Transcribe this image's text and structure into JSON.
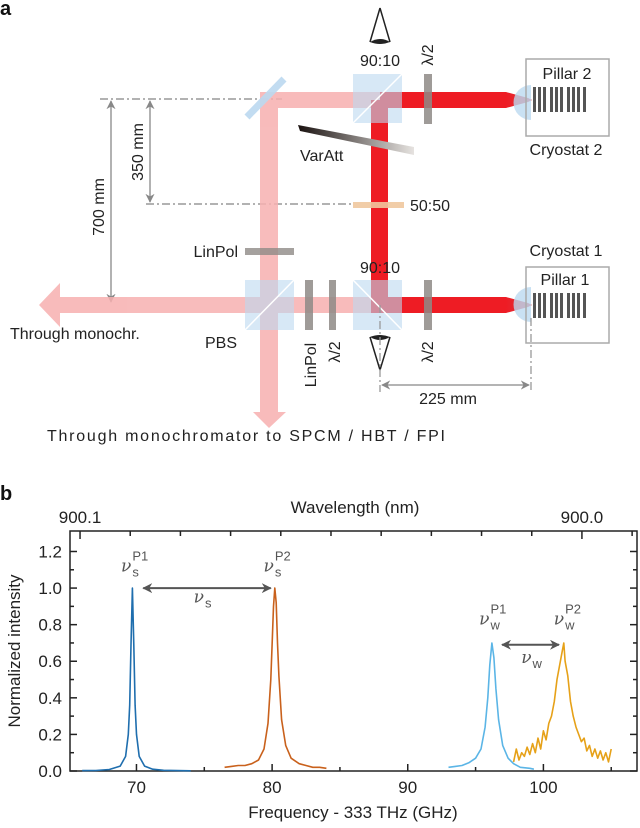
{
  "panel_a": {
    "panel_label": "a",
    "labels": {
      "top_splitter": "90:10",
      "top_waveplate": "λ/2",
      "pillar2": "Pillar 2",
      "cryostat2": "Cryostat 2",
      "varatt": "VarAtt",
      "splitter_5050": "50:50",
      "dist_350": "350 mm",
      "dist_700": "700 mm",
      "linpol_upper": "LinPol",
      "cryostat1": "Cryostat 1",
      "bottom_splitter": "90:10",
      "pillar1": "Pillar 1",
      "through_monochr": "Through monochr.",
      "pbs": "PBS",
      "linpol_lower": "LinPol",
      "waveplate_lower_left": "λ/2",
      "waveplate_lower_right": "λ/2",
      "dist_225": "225 mm",
      "bottom_output": "Through monochromator to SPCM / HBT / FPI"
    },
    "colors": {
      "beam_faint": "#f5a9a9",
      "beam_strong": "#ee1c24",
      "optics": "#bcd9f0",
      "plate": "#8e8a86",
      "splitter_5050": "#f0c89e"
    }
  },
  "panel_b": {
    "panel_label": "b"
  },
  "chart_data": {
    "type": "line",
    "xlabel": "Frequency - 333 THz (GHz)",
    "ylabel": "Normalized intensity",
    "top_xlabel": "Wavelength (nm)",
    "xlim": [
      65.1,
      106.9
    ],
    "ylim": [
      0,
      1.312
    ],
    "grid": false,
    "xticks": [
      70,
      80,
      90,
      100
    ],
    "xtick_labels": [
      "70",
      "80",
      "90",
      "100"
    ],
    "x_minor_ticks": [
      75,
      85,
      95,
      105
    ],
    "yticks": [
      0,
      0.2,
      0.4,
      0.6,
      0.8,
      1.0,
      1.2
    ],
    "ytick_labels": [
      "0.0",
      "0.2",
      "0.4",
      "0.6",
      "0.8",
      "1.0",
      "1.2"
    ],
    "y_minor_ticks": [
      0.1,
      0.3,
      0.5,
      0.7,
      0.9,
      1.1
    ],
    "top_axis": {
      "ticks": [
        {
          "label": "900.1",
          "freq": 65.84
        },
        {
          "label": "900.0",
          "freq": 102.84
        }
      ],
      "minor_step_nm": 0.01
    },
    "series": [
      {
        "name": "P1 s",
        "color": "#1f6eae",
        "x": [
          66,
          67,
          68,
          68.8,
          69.2,
          69.4,
          69.5,
          69.6,
          69.7,
          69.8,
          69.9,
          70.0,
          70.2,
          70.6,
          71.2,
          72,
          73,
          74
        ],
        "y": [
          0.002,
          0.003,
          0.008,
          0.027,
          0.08,
          0.2,
          0.36,
          0.69,
          1.0,
          0.69,
          0.36,
          0.2,
          0.08,
          0.027,
          0.01,
          0.004,
          0.002,
          0.001
        ]
      },
      {
        "name": "P2 s",
        "color": "#c9611c",
        "x": [
          76.5,
          77,
          77.5,
          78,
          78.5,
          79,
          79.4,
          79.7,
          79.9,
          80.0,
          80.1,
          80.2,
          80.3,
          80.4,
          80.5,
          80.7,
          81,
          81.4,
          82,
          82.5,
          83,
          83.5,
          84
        ],
        "y": [
          0.02,
          0.025,
          0.03,
          0.03,
          0.04,
          0.06,
          0.12,
          0.26,
          0.5,
          0.69,
          0.9,
          1.0,
          0.92,
          0.7,
          0.52,
          0.28,
          0.14,
          0.07,
          0.04,
          0.03,
          0.02,
          0.02,
          0.015
        ]
      },
      {
        "name": "P1 w",
        "color": "#5bb5e6",
        "x": [
          93,
          93.5,
          94,
          94.5,
          95,
          95.4,
          95.7,
          95.9,
          96.05,
          96.2,
          96.35,
          96.5,
          96.7,
          97,
          97.4,
          97.8,
          98.3,
          99,
          99.3
        ],
        "y": [
          0.02,
          0.025,
          0.03,
          0.045,
          0.07,
          0.12,
          0.24,
          0.4,
          0.58,
          0.7,
          0.62,
          0.45,
          0.28,
          0.14,
          0.07,
          0.04,
          0.02,
          0.015,
          0.01
        ]
      },
      {
        "name": "P2 w",
        "color": "#e6a118",
        "x": [
          97.8,
          98.0,
          98.2,
          98.4,
          98.6,
          98.8,
          99.0,
          99.2,
          99.4,
          99.6,
          99.8,
          100.0,
          100.2,
          100.4,
          100.6,
          100.8,
          101.0,
          101.2,
          101.4,
          101.5,
          101.6,
          101.8,
          102.0,
          102.2,
          102.4,
          102.6,
          102.8,
          103.0,
          103.2,
          103.4,
          103.6,
          103.8,
          104.0,
          104.2,
          104.4,
          104.6,
          104.8,
          105.0
        ],
        "y": [
          0.05,
          0.12,
          0.06,
          0.1,
          0.08,
          0.13,
          0.09,
          0.15,
          0.1,
          0.18,
          0.12,
          0.22,
          0.17,
          0.26,
          0.3,
          0.38,
          0.5,
          0.58,
          0.66,
          0.7,
          0.6,
          0.52,
          0.38,
          0.3,
          0.24,
          0.2,
          0.16,
          0.18,
          0.11,
          0.14,
          0.08,
          0.12,
          0.07,
          0.11,
          0.06,
          0.1,
          0.05,
          0.12
        ]
      }
    ],
    "annotations": [
      {
        "base": "ν",
        "sub": "s",
        "sup": "P1",
        "x": 69.7,
        "y": 1.09
      },
      {
        "base": "ν",
        "sub": "s",
        "sup": "P2",
        "x": 80.2,
        "y": 1.09
      },
      {
        "base": "ν",
        "sub": "s",
        "sup": "",
        "x": 75.05,
        "y": 0.92
      },
      {
        "base": "ν",
        "sub": "w",
        "sup": "P1",
        "x": 96.1,
        "y": 0.8
      },
      {
        "base": "ν",
        "sub": "w",
        "sup": "P2",
        "x": 101.6,
        "y": 0.8
      },
      {
        "base": "ν",
        "sub": "w",
        "sup": "",
        "x": 99.2,
        "y": 0.59
      }
    ],
    "arrows": [
      {
        "from": 70.5,
        "to": 79.9,
        "y": 1.0
      },
      {
        "from": 96.95,
        "to": 101.15,
        "y": 0.69
      }
    ]
  }
}
